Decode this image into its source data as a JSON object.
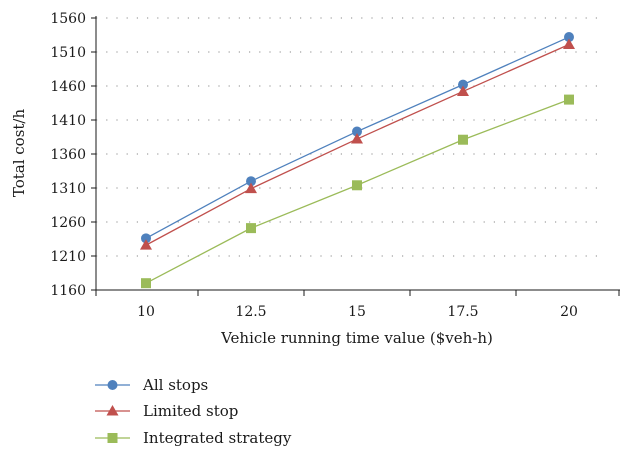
{
  "chart_data": {
    "type": "line",
    "xlabel": "Vehicle running time value ($veh-h)",
    "ylabel": "Total cost/h",
    "x": [
      10,
      12.5,
      15,
      17.5,
      20
    ],
    "x_tick_labels": [
      "10",
      "12.5",
      "15",
      "17.5",
      "20"
    ],
    "y_ticks": [
      1160,
      1210,
      1260,
      1310,
      1360,
      1410,
      1460,
      1510,
      1560
    ],
    "ylim": [
      1160,
      1560
    ],
    "grid": "horizontal-dotted",
    "legend": "bottom-left",
    "series": [
      {
        "name": "All stops",
        "marker": "circle",
        "color": "#4f81bd",
        "values": [
          1236,
          1320,
          1393,
          1462,
          1532
        ]
      },
      {
        "name": "Limited stop",
        "marker": "triangle",
        "color": "#c0504d",
        "values": [
          1226,
          1309,
          1382,
          1452,
          1521
        ]
      },
      {
        "name": "Integrated strategy",
        "marker": "square",
        "color": "#9bbb59",
        "values": [
          1170,
          1251,
          1314,
          1381,
          1440
        ]
      }
    ]
  }
}
